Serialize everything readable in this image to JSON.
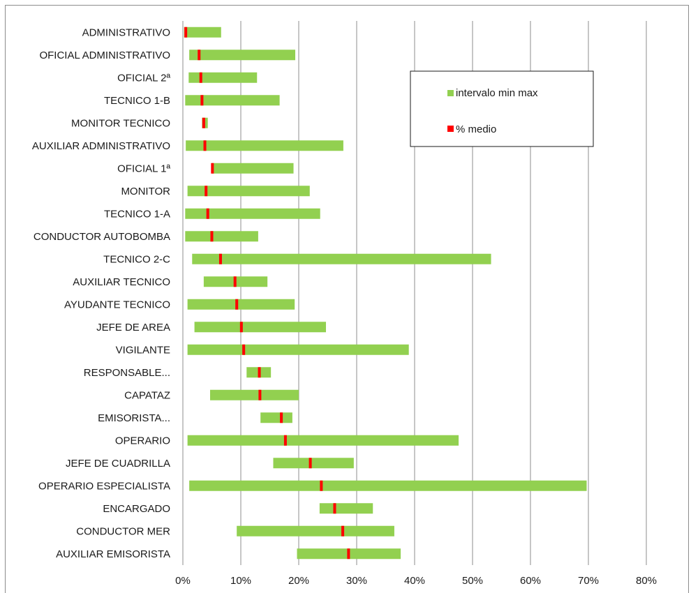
{
  "chart_data": {
    "type": "bar",
    "subtype": "floating-range",
    "categories": [
      "ADMINISTRATIVO",
      "OFICIAL ADMINISTRATIVO",
      "OFICIAL 2ª",
      "TECNICO 1-B",
      "MONITOR TECNICO",
      "AUXILIAR ADMINISTRATIVO",
      "OFICIAL 1ª",
      "MONITOR",
      "TECNICO 1-A",
      "CONDUCTOR AUTOBOMBA",
      "TECNICO 2-C",
      "AUXILIAR TECNICO",
      "AYUDANTE TECNICO",
      "JEFE DE AREA",
      "VIGILANTE",
      "RESPONSABLE...",
      "CAPATAZ",
      "EMISORISTA...",
      "OPERARIO",
      "JEFE DE CUADRILLA",
      "OPERARIO ESPECIALISTA",
      "ENCARGADO",
      "CONDUCTOR MER",
      "AUXILIAR EMISORISTA"
    ],
    "series": [
      {
        "name": "intervalo min max",
        "color": "#92d050",
        "min": [
          0.2,
          1.1,
          1.0,
          0.4,
          3.3,
          0.5,
          5.0,
          0.8,
          0.4,
          0.4,
          1.6,
          3.6,
          0.8,
          2.0,
          0.8,
          11.0,
          4.7,
          13.4,
          0.8,
          15.6,
          1.1,
          23.6,
          9.3,
          19.7
        ],
        "max": [
          6.6,
          19.4,
          12.8,
          16.7,
          4.3,
          27.7,
          19.1,
          21.9,
          23.7,
          13.0,
          53.2,
          14.6,
          19.3,
          24.7,
          39.0,
          15.2,
          20.0,
          18.9,
          47.6,
          29.5,
          69.7,
          32.8,
          36.5,
          37.6
        ]
      },
      {
        "name": "% medio",
        "color": "#ff0000",
        "values": [
          0.5,
          2.8,
          3.1,
          3.3,
          3.6,
          3.8,
          5.1,
          4.0,
          4.3,
          5.0,
          6.5,
          9.0,
          9.3,
          10.1,
          10.5,
          13.2,
          13.3,
          17.0,
          17.7,
          22.0,
          23.9,
          26.2,
          27.6,
          28.6
        ]
      }
    ],
    "x_ticks": [
      "0%",
      "10%",
      "20%",
      "30%",
      "40%",
      "50%",
      "60%",
      "70%",
      "80%"
    ],
    "xlim": [
      0,
      80
    ],
    "grid": "vertical",
    "legend_position": "upper-right",
    "title": "",
    "xlabel": "",
    "ylabel": ""
  }
}
